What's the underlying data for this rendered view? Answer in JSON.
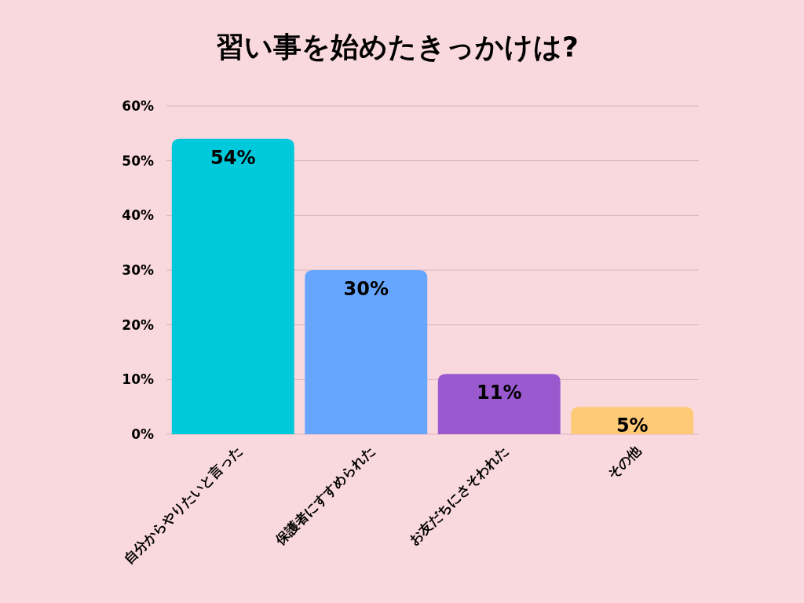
{
  "chart_data": {
    "type": "bar",
    "title": "習い事を始めたきっかけは?",
    "categories": [
      "自分からやりたいと言った",
      "保護者にすすめられた",
      "お友だちにさそわれた",
      "その他"
    ],
    "values": [
      54,
      30,
      11,
      5
    ],
    "colors": [
      "#00c9db",
      "#66a6ff",
      "#9b59d0",
      "#ffca78"
    ],
    "value_labels": [
      "54%",
      "30%",
      "11%",
      "5%"
    ],
    "ylim": [
      0,
      60
    ],
    "yticks": [
      {
        "value": 0,
        "label": "0%"
      },
      {
        "value": 10,
        "label": "10%"
      },
      {
        "value": 20,
        "label": "20%"
      },
      {
        "value": 30,
        "label": "30%"
      },
      {
        "value": 40,
        "label": "40%"
      },
      {
        "value": 50,
        "label": "50%"
      },
      {
        "value": 60,
        "label": "60%"
      }
    ],
    "grid": "y"
  }
}
